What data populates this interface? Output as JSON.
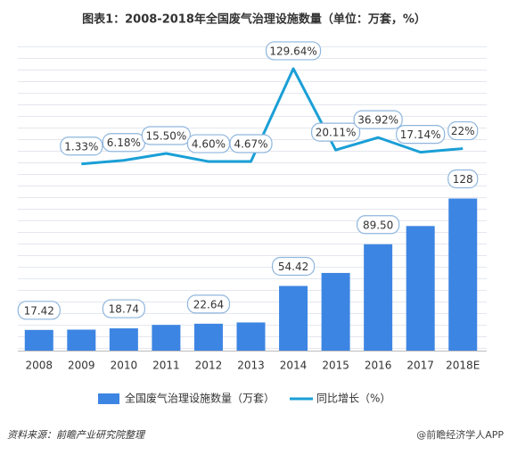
{
  "chart_data": {
    "type": "bar-line",
    "title": "图表1：2008-2018年全国废气治理设施数量（单位：万套，%）",
    "categories": [
      "2008",
      "2009",
      "2010",
      "2011",
      "2012",
      "2013",
      "2014",
      "2015",
      "2016",
      "2017",
      "2018E"
    ],
    "series": [
      {
        "name": "全国废气治理设施数量（万套）",
        "type": "bar",
        "color": "#3d85e3",
        "values": [
          17.42,
          17.65,
          18.74,
          21.65,
          22.64,
          23.7,
          54.42,
          65.36,
          89.5,
          104.84,
          128
        ],
        "value_labels": [
          "17.42",
          null,
          "18.74",
          null,
          "22.64",
          null,
          "54.42",
          null,
          "89.50",
          null,
          "128"
        ]
      },
      {
        "name": "同比增长（%）",
        "type": "line",
        "axis": "y2",
        "color": "#1a9fd6",
        "values": [
          null,
          1.33,
          6.18,
          15.5,
          4.6,
          4.67,
          129.64,
          20.11,
          36.92,
          17.14,
          22
        ],
        "value_labels": [
          null,
          "1.33%",
          "6.18%",
          "15.50%",
          "4.60%",
          "4.67%",
          "129.64%",
          "20.11%",
          "36.92%",
          "17.14%",
          "22%"
        ]
      }
    ],
    "ylim": [
      0,
      250
    ],
    "y2lim": [
      -250,
      150
    ],
    "source": "资料来源：前瞻产业研究院整理",
    "watermark": "@前瞻经济学人APP"
  }
}
